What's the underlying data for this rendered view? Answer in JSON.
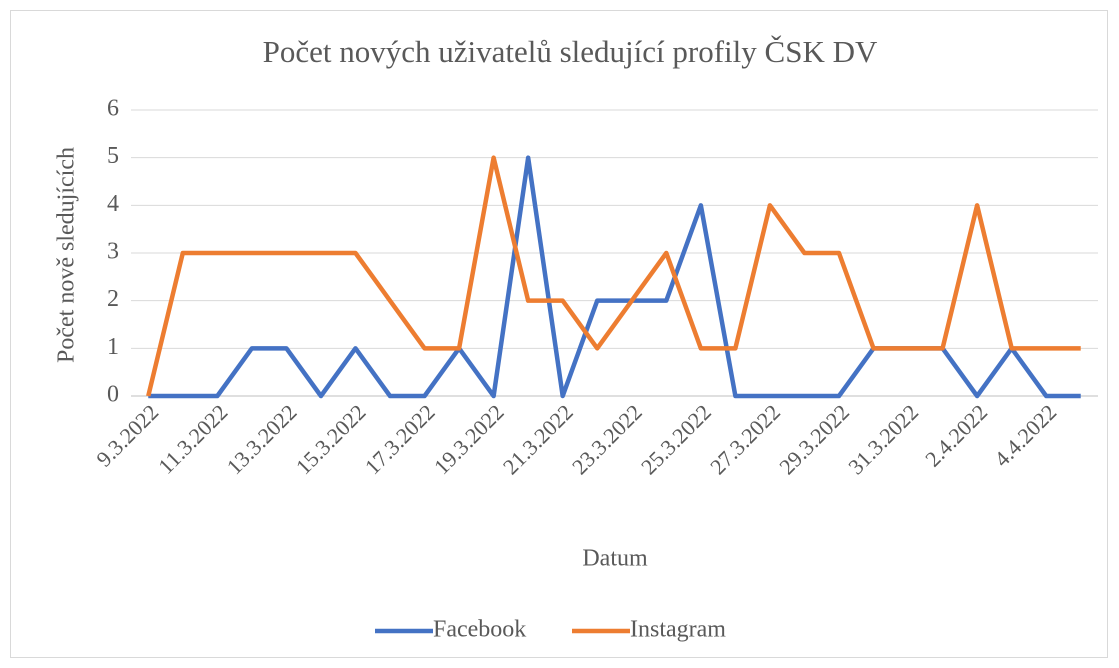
{
  "chart_data": {
    "type": "line",
    "title": "Počet nových uživatelů sledující profily ČSK DV",
    "x_label": "Datum",
    "y_label": "Počet nově sledujících",
    "categories": [
      "9.3.2022",
      null,
      "11.3.2022",
      null,
      "13.3.2022",
      null,
      "15.3.2022",
      null,
      "17.3.2022",
      null,
      "19.3.2022",
      null,
      "21.3.2022",
      null,
      "23.3.2022",
      null,
      "25.3.2022",
      null,
      "27.3.2022",
      null,
      "29.3.2022",
      null,
      "31.3.2022",
      null,
      "2.4.2022",
      null,
      "4.4.2022",
      null
    ],
    "series": [
      {
        "name": "Facebook",
        "color": "#4472c4",
        "values": [
          0,
          0,
          0,
          1,
          1,
          0,
          1,
          0,
          0,
          1,
          0,
          5,
          0,
          2,
          2,
          2,
          4,
          0,
          0,
          0,
          0,
          1,
          1,
          1,
          0,
          1,
          0,
          0
        ]
      },
      {
        "name": "Instagram",
        "color": "#ed7d31",
        "values": [
          0,
          3,
          3,
          3,
          3,
          3,
          3,
          2,
          1,
          1,
          5,
          2,
          2,
          1,
          2,
          3,
          1,
          1,
          4,
          3,
          3,
          1,
          1,
          1,
          4,
          1,
          1,
          1
        ]
      }
    ],
    "ylim": [
      0,
      6
    ],
    "yticks": [
      0,
      1,
      2,
      3,
      4,
      5,
      6
    ],
    "grid": true,
    "legend": "bottom"
  }
}
